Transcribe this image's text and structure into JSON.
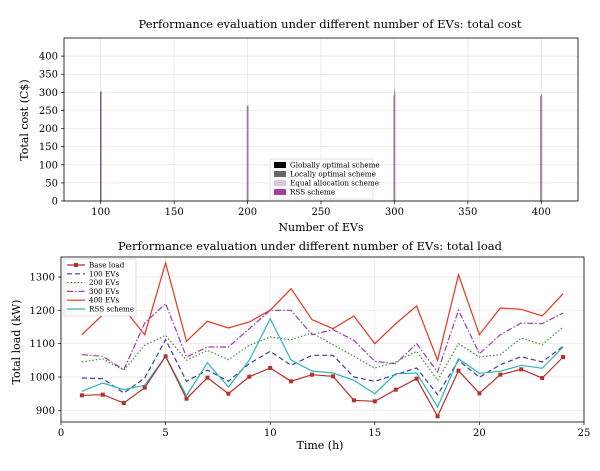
{
  "chart_data": [
    {
      "type": "bar",
      "title": "Performance evaluation under different number of EVs: total cost",
      "xlabel": "Number of EVs",
      "ylabel": "Total cost (C$)",
      "xlim": [
        75,
        425
      ],
      "ylim": [
        0,
        450
      ],
      "xticks": [
        100,
        150,
        200,
        250,
        300,
        350,
        400
      ],
      "yticks": [
        0,
        50,
        100,
        150,
        200,
        250,
        300,
        350,
        400
      ],
      "categories": [
        100,
        200,
        300,
        400
      ],
      "series": [
        {
          "name": "Globally optimal scheme",
          "color": "#000000",
          "values": [
            300,
            262,
            292,
            290
          ]
        },
        {
          "name": "Locally optimal scheme",
          "color": "#666666",
          "values": [
            305,
            264,
            308,
            295
          ]
        },
        {
          "name": "Equal allocation scheme",
          "color": "#d8c7dc",
          "values": [
            310,
            265,
            318,
            298
          ]
        },
        {
          "name": "RSS scheme",
          "color": "#a6419a",
          "values": [
            302,
            263,
            300,
            292
          ]
        }
      ],
      "legend": "bottom-center",
      "grid": true
    },
    {
      "type": "line",
      "title": "Performance evaluation under different number of EVs: total load",
      "xlabel": "Time (h)",
      "ylabel": "Total load (kW)",
      "xlim": [
        0,
        25
      ],
      "ylim": [
        865,
        1360
      ],
      "xticks": [
        0,
        5,
        10,
        15,
        20,
        25
      ],
      "yticks": [
        900,
        1000,
        1100,
        1200,
        1300
      ],
      "x": [
        1,
        2,
        3,
        4,
        5,
        6,
        7,
        8,
        9,
        10,
        11,
        12,
        13,
        14,
        15,
        16,
        17,
        18,
        19,
        20,
        21,
        22,
        23,
        24
      ],
      "series": [
        {
          "name": "Base load",
          "color": "#b5302a",
          "style": "solid-square",
          "values": [
            945,
            947,
            922,
            968,
            1062,
            935,
            998,
            950,
            1001,
            1027,
            987,
            1007,
            1002,
            930,
            927,
            962,
            995,
            882,
            1019,
            951,
            1007,
            1023,
            997,
            1060
          ]
        },
        {
          "name": "100 EVs",
          "color": "#3d3d9e",
          "style": "dashed",
          "values": [
            997,
            995,
            952,
            997,
            1112,
            987,
            1021,
            987,
            1040,
            1077,
            1035,
            1065,
            1065,
            1000,
            987,
            1007,
            1027,
            947,
            1050,
            999,
            1037,
            1061,
            1045,
            1092
          ]
        },
        {
          "name": "200 EVs",
          "color": "#3b8c3b",
          "style": "dotted",
          "values": [
            1045,
            1055,
            1020,
            1095,
            1125,
            1050,
            1080,
            1052,
            1095,
            1120,
            1112,
            1132,
            1097,
            1062,
            1027,
            1045,
            1077,
            990,
            1100,
            1060,
            1067,
            1117,
            1097,
            1150
          ]
        },
        {
          "name": "300 EVs",
          "color": "#9b3ea6",
          "style": "dashdot",
          "values": [
            1067,
            1062,
            1022,
            1162,
            1220,
            1060,
            1090,
            1090,
            1145,
            1200,
            1200,
            1127,
            1142,
            1110,
            1047,
            1040,
            1100,
            1015,
            1200,
            1070,
            1127,
            1162,
            1160,
            1192
          ]
        },
        {
          "name": "400 EVs",
          "color": "#e8321e",
          "style": "solid",
          "values": [
            1127,
            1187,
            1205,
            1127,
            1342,
            1107,
            1167,
            1147,
            1165,
            1200,
            1265,
            1172,
            1145,
            1183,
            1100,
            1160,
            1213,
            1050,
            1307,
            1127,
            1207,
            1203,
            1183,
            1250
          ]
        },
        {
          "name": "RSS scheme",
          "color": "#2cb5b9",
          "style": "solid",
          "values": [
            957,
            982,
            962,
            975,
            1062,
            944,
            1043,
            970,
            1050,
            1175,
            1051,
            1018,
            1012,
            990,
            950,
            1010,
            1012,
            910,
            1055,
            1011,
            1017,
            1035,
            1026,
            1090
          ]
        }
      ],
      "legend": "top-left",
      "grid": true
    }
  ]
}
